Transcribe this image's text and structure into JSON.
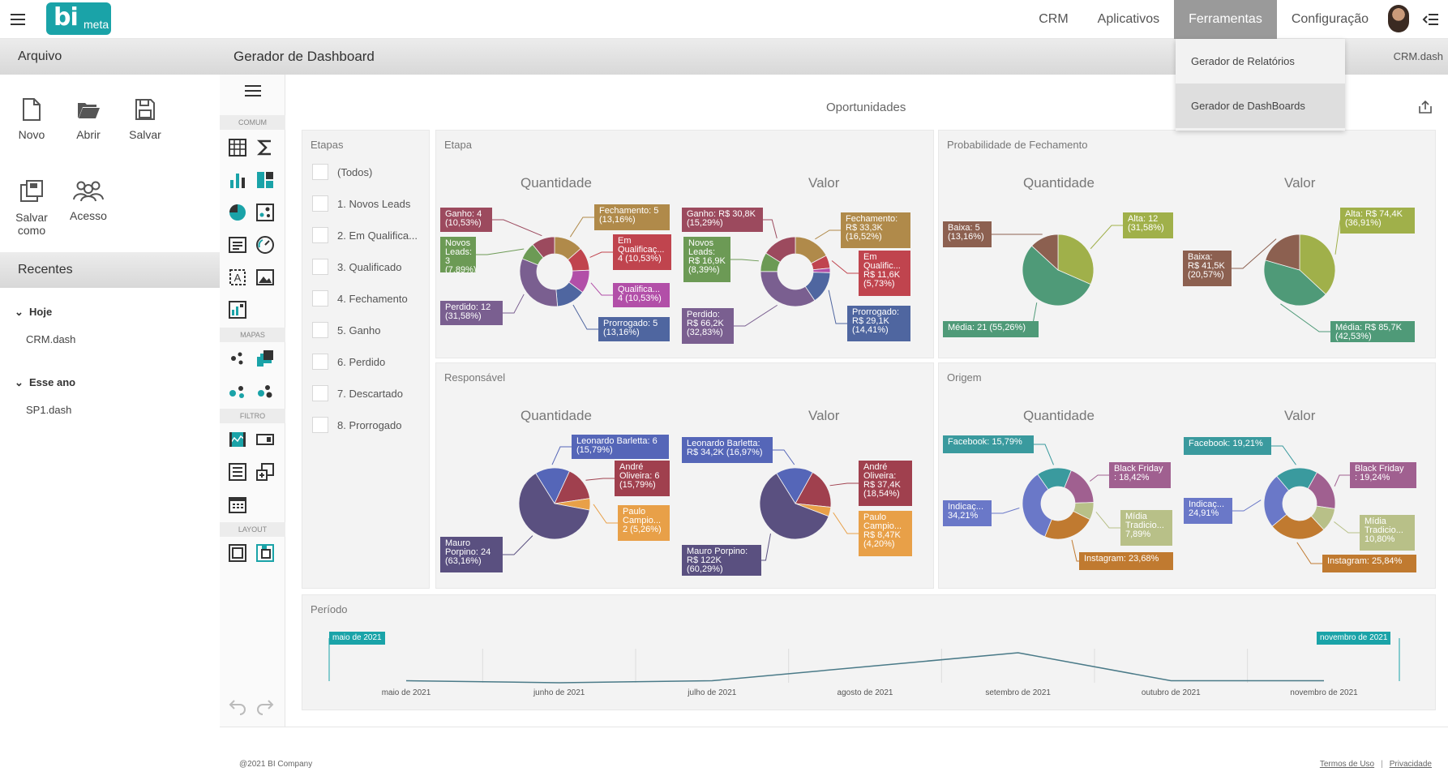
{
  "logo": {
    "main": "bi",
    "sub": "meta"
  },
  "nav": [
    {
      "label": "CRM"
    },
    {
      "label": "Aplicativos"
    },
    {
      "label": "Ferramentas"
    },
    {
      "label": "Configuração"
    }
  ],
  "dropdown": {
    "items": [
      {
        "label": "Gerador de Relatórios"
      },
      {
        "label": "Gerador de DashBoards"
      }
    ]
  },
  "left": {
    "arquivo_title": "Arquivo",
    "actions": {
      "novo": "Novo",
      "abrir": "Abrir",
      "salvar": "Salvar",
      "salvar_como": "Salvar como",
      "acesso": "Acesso"
    },
    "recentes_title": "Recentes",
    "groups": [
      {
        "label": "Hoje",
        "files": [
          "CRM.dash"
        ]
      },
      {
        "label": "Esse ano",
        "files": [
          "SP1.dash"
        ]
      }
    ]
  },
  "header": {
    "title": "Gerador de Dashboard",
    "file": "CRM.dash"
  },
  "toolbox": {
    "sections": [
      "COMUM",
      "MAPAS",
      "FILTRO",
      "LAYOUT"
    ]
  },
  "dashboard": {
    "title": "Oportunidades",
    "filter": {
      "title": "Etapas",
      "items": [
        "(Todos)",
        "1. Novos Leads",
        "2. Em Qualifica...",
        "3. Qualificado",
        "4. Fechamento",
        "5. Ganho",
        "6. Perdido",
        "7. Descartado",
        "8. Prorrogado"
      ]
    },
    "cards": {
      "etapa": "Etapa",
      "prob": "Probabilidade de Fechamento",
      "resp": "Responsável",
      "origem": "Origem",
      "periodo": "Período"
    },
    "sub_q": "Quantidade",
    "sub_v": "Valor"
  },
  "chart_data": [
    {
      "type": "pie",
      "variant": "donut",
      "group": "Etapa",
      "title": "Quantidade",
      "slices": [
        {
          "name": "Fechamento",
          "value": 5,
          "pct": 13.16,
          "color": "#b08a4a",
          "label": "Fechamento: 5\n(13,16%)"
        },
        {
          "name": "Em Qualificação",
          "value": 4,
          "pct": 10.53,
          "color": "#c0444e",
          "label": "Em\nQualificaç...\n4 (10,53%)"
        },
        {
          "name": "Qualificado",
          "value": 4,
          "pct": 10.53,
          "color": "#b24fa8",
          "label": "Qualifica...\n4 (10,53%)"
        },
        {
          "name": "Prorrogado",
          "value": 5,
          "pct": 13.16,
          "color": "#4f66a0",
          "label": "Prorrogado: 5\n(13,16%)"
        },
        {
          "name": "Perdido",
          "value": 12,
          "pct": 31.58,
          "color": "#7a5f90",
          "label": "Perdido: 12\n(31,58%)"
        },
        {
          "name": "Novos Leads",
          "value": 3,
          "pct": 7.89,
          "color": "#6c9a55",
          "label": "Novos\nLeads: 3\n(7,89%)"
        },
        {
          "name": "Ganho",
          "value": 4,
          "pct": 10.53,
          "color": "#9c4a5e",
          "label": "Ganho: 4\n(10,53%)"
        }
      ]
    },
    {
      "type": "pie",
      "variant": "donut",
      "group": "Etapa",
      "title": "Valor",
      "slices": [
        {
          "name": "Fechamento",
          "pct": 16.52,
          "color": "#b08a4a",
          "label": "Fechamento:\nR$ 33,3K\n(16,52%)"
        },
        {
          "name": "Em Qualificação",
          "pct": 5.73,
          "color": "#c0444e",
          "label": "Em\nQualific...\nR$ 11,6K\n(5,73%)"
        },
        {
          "name": "Qualificado",
          "pct": 2.0,
          "color": "#b24fa8",
          "label": ""
        },
        {
          "name": "Prorrogado",
          "pct": 14.41,
          "color": "#4f66a0",
          "label": "Prorrogado:\nR$ 29,1K\n(14,41%)"
        },
        {
          "name": "Perdido",
          "pct": 32.83,
          "color": "#7a5f90",
          "label": "Perdido:\nR$ 66,2K\n(32,83%)"
        },
        {
          "name": "Novos Leads",
          "pct": 8.39,
          "color": "#6c9a55",
          "label": "Novos\nLeads:\nR$ 16,9K\n(8,39%)"
        },
        {
          "name": "Ganho",
          "pct": 15.29,
          "color": "#9c4a5e",
          "label": "Ganho: R$ 30,8K\n(15,29%)"
        }
      ]
    },
    {
      "type": "pie",
      "group": "Probabilidade de Fechamento",
      "title": "Quantidade",
      "slices": [
        {
          "name": "Alta",
          "value": 12,
          "pct": 31.58,
          "color": "#a0b04a",
          "label": "Alta: 12\n(31,58%)"
        },
        {
          "name": "Média",
          "value": 21,
          "pct": 55.26,
          "color": "#4f9a78",
          "label": "Média: 21 (55,26%)"
        },
        {
          "name": "Baixa",
          "value": 5,
          "pct": 13.16,
          "color": "#8c6050",
          "label": "Baixa: 5\n(13,16%)"
        }
      ]
    },
    {
      "type": "pie",
      "group": "Probabilidade de Fechamento",
      "title": "Valor",
      "slices": [
        {
          "name": "Alta",
          "pct": 36.91,
          "color": "#a0b04a",
          "label": "Alta: R$ 74,4K\n(36,91%)"
        },
        {
          "name": "Média",
          "pct": 42.53,
          "color": "#4f9a78",
          "label": "Média: R$ 85,7K\n(42,53%)"
        },
        {
          "name": "Baixa",
          "pct": 20.57,
          "color": "#8c6050",
          "label": "Baixa:\nR$ 41,5K\n(20,57%)"
        }
      ]
    },
    {
      "type": "pie",
      "group": "Responsável",
      "title": "Quantidade",
      "slices": [
        {
          "name": "Leonardo Barletta",
          "value": 6,
          "pct": 15.79,
          "color": "#5566b8",
          "label": "Leonardo Barletta: 6\n(15,79%)"
        },
        {
          "name": "André Oliveira",
          "value": 6,
          "pct": 15.79,
          "color": "#a0404e",
          "label": "André\nOliveira: 6\n(15,79%)"
        },
        {
          "name": "Paulo Campio",
          "value": 2,
          "pct": 5.26,
          "color": "#e8a048",
          "label": "Paulo\nCampio...\n2 (5,26%)"
        },
        {
          "name": "Mauro Porpino",
          "value": 24,
          "pct": 63.16,
          "color": "#5a5080",
          "label": "Mauro\nPorpino: 24\n(63,16%)"
        }
      ]
    },
    {
      "type": "pie",
      "group": "Responsável",
      "title": "Valor",
      "slices": [
        {
          "name": "Leonardo Barletta",
          "pct": 16.97,
          "color": "#5566b8",
          "label": "Leonardo Barletta:\nR$ 34,2K (16,97%)"
        },
        {
          "name": "André Oliveira",
          "pct": 18.54,
          "color": "#a0404e",
          "label": "André\nOliveira:\nR$ 37,4K\n(18,54%)"
        },
        {
          "name": "Paulo Campio",
          "pct": 4.2,
          "color": "#e8a048",
          "label": "Paulo\nCampio...\nR$ 8,47K\n(4,20%)"
        },
        {
          "name": "Mauro Porpino",
          "pct": 60.29,
          "color": "#5a5080",
          "label": "Mauro Porpino:\nR$ 122K\n(60,29%)"
        }
      ]
    },
    {
      "type": "pie",
      "variant": "donut",
      "group": "Origem",
      "title": "Quantidade",
      "slices": [
        {
          "name": "Facebook",
          "pct": 15.79,
          "color": "#3a9a9e",
          "label": "Facebook: 15,79%"
        },
        {
          "name": "Black Friday",
          "pct": 18.42,
          "color": "#a06090",
          "label": "Black Friday\n: 18,42%"
        },
        {
          "name": "Mídia Tradicional",
          "pct": 7.89,
          "color": "#b8c088",
          "label": "Mídia\nTradicio...\n7,89%"
        },
        {
          "name": "Instagram",
          "pct": 23.68,
          "color": "#c07a30",
          "label": "Instagram: 23,68%"
        },
        {
          "name": "Indicação",
          "pct": 34.21,
          "color": "#6a78c8",
          "label": "Indicaç...\n34,21%"
        }
      ]
    },
    {
      "type": "pie",
      "variant": "donut",
      "group": "Origem",
      "title": "Valor",
      "slices": [
        {
          "name": "Facebook",
          "pct": 19.21,
          "color": "#3a9a9e",
          "label": "Facebook: 19,21%"
        },
        {
          "name": "Black Friday",
          "pct": 19.24,
          "color": "#a06090",
          "label": "Black Friday\n: 19,24%"
        },
        {
          "name": "Mídia Tradicional",
          "pct": 10.8,
          "color": "#b8c088",
          "label": "Mídia\nTradicio...\n10,80%"
        },
        {
          "name": "Instagram",
          "pct": 25.84,
          "color": "#c07a30",
          "label": "Instagram: 25,84%"
        },
        {
          "name": "Indicação",
          "pct": 24.91,
          "color": "#6a78c8",
          "label": "Indicaç...\n24,91%"
        }
      ]
    },
    {
      "type": "line",
      "group": "Período",
      "x": [
        "maio de 2021",
        "junho de 2021",
        "julho de 2021",
        "agosto de 2021",
        "setembro de 2021",
        "outubro de 2021",
        "novembro de 2021"
      ],
      "y": [
        1,
        0,
        1,
        8,
        15,
        1,
        1
      ],
      "range_start": "maio de 2021",
      "range_end": "novembro de 2021",
      "color": "#4a7a88"
    }
  ],
  "footer": {
    "copyright": "@2021 BI Company",
    "terms": "Termos de Uso",
    "privacy": "Privacidade"
  }
}
